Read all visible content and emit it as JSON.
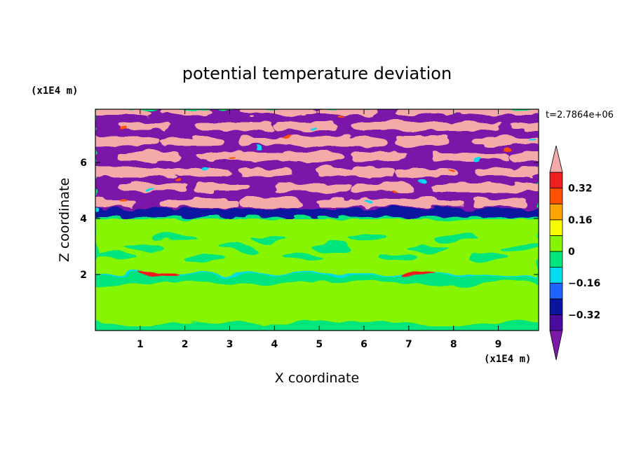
{
  "chart_data": {
    "type": "heatmap",
    "title": "potential temperature deviation",
    "xlabel": "X coordinate",
    "ylabel": "Z coordinate",
    "x_unit": "(x1E4 m)",
    "y_unit": "(x1E4 m)",
    "xlim": [
      0,
      9.9
    ],
    "ylim": [
      0,
      7.9
    ],
    "x_ticks": [
      1,
      2,
      3,
      4,
      5,
      6,
      7,
      8,
      9
    ],
    "y_ticks": [
      2,
      4,
      6
    ],
    "x_tick_labels": [
      "1",
      "2",
      "3",
      "4",
      "5",
      "6",
      "7",
      "8",
      "9"
    ],
    "y_tick_labels": [
      "2",
      "4",
      "6"
    ],
    "time_label": "t=2.7864e+06",
    "colorbar": {
      "levels": [
        -0.4,
        -0.32,
        -0.24,
        -0.16,
        -0.08,
        0,
        0.08,
        0.16,
        0.24,
        0.32,
        0.4
      ],
      "tick_values": [
        -0.32,
        -0.16,
        0,
        0.16,
        0.32
      ],
      "tick_labels": [
        "−0.32",
        "−0.16",
        "0",
        "0.16",
        "0.32"
      ],
      "colors": [
        "#7b19a8",
        "#4b0aa0",
        "#0a14a0",
        "#1e64ff",
        "#00dcf0",
        "#00e67d",
        "#87f500",
        "#fafa00",
        "#ffa500",
        "#ff5000",
        "#f01e1e",
        "#f5aaaa"
      ],
      "extend": "both"
    }
  }
}
